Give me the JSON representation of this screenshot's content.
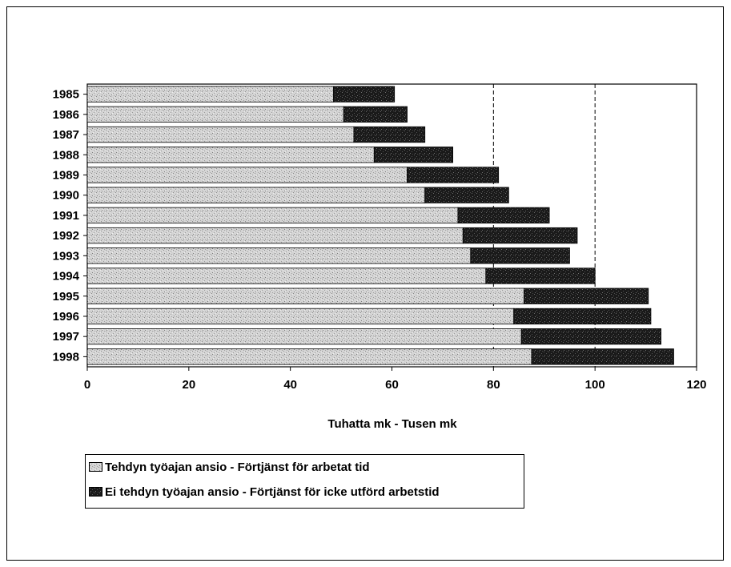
{
  "chart_data": {
    "type": "bar",
    "orientation": "horizontal",
    "stacked": true,
    "categories": [
      "1985",
      "1986",
      "1987",
      "1988",
      "1989",
      "1990",
      "1991",
      "1992",
      "1993",
      "1994",
      "1995",
      "1996",
      "1997",
      "1998"
    ],
    "series": [
      {
        "name": "Tehdyn työajan ansio - Förtjänst för arbetat tid",
        "values": [
          48.5,
          50.5,
          52.5,
          56.5,
          63,
          66.5,
          73,
          74,
          75.5,
          78.5,
          86,
          84,
          85.5,
          87.5
        ],
        "color": "#c8c8c8"
      },
      {
        "name": "Ei tehdyn työajan ansio - Förtjänst för icke utförd arbetstid",
        "values": [
          12,
          12.5,
          14,
          15.5,
          18,
          16.5,
          18,
          22.5,
          19.5,
          21.5,
          24.5,
          27,
          27.5,
          28
        ],
        "color": "#1e1e1e"
      }
    ],
    "xlabel": "Tuhatta mk - Tusen mk",
    "xlim": [
      0,
      120
    ],
    "xticks": [
      "0",
      "20",
      "40",
      "60",
      "80",
      "100",
      "120"
    ],
    "reference_lines": [
      80,
      100
    ],
    "grid": false,
    "legend_position": "bottom-left"
  }
}
